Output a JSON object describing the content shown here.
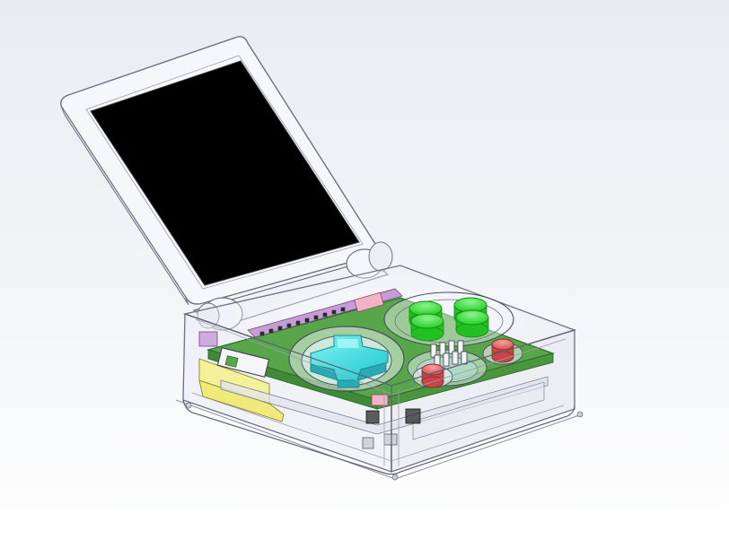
{
  "scene": {
    "title": "",
    "subject": "clamshell-handheld-cad-assembly",
    "render_style": "transparent-shaded-wireframe"
  },
  "colors": {
    "background_top": "#e9ecf1",
    "background_mid": "#f3f5f8",
    "background_bottom": "#ffffff",
    "shell_edge": "#6e7284",
    "screen": "#000000",
    "pcb": "#58a64a",
    "pcb_edge": "#2e6a2a",
    "dpad": "#3fe4e4",
    "dpad_edge": "#1b8c95",
    "face_buttons": "#3fe13f",
    "face_buttons_edge": "#1a8a1a",
    "small_buttons": "#e86a6a",
    "small_buttons_edge": "#8a2d2d",
    "cartridge": "#f0ea7a",
    "connector": "#c89ad8",
    "ribbon_pink": "#f2b2c8"
  },
  "icons": {
    "dpad": "cross-pad-icon",
    "face_buttons": "round-button-icon",
    "small_buttons": "round-button-icon"
  }
}
